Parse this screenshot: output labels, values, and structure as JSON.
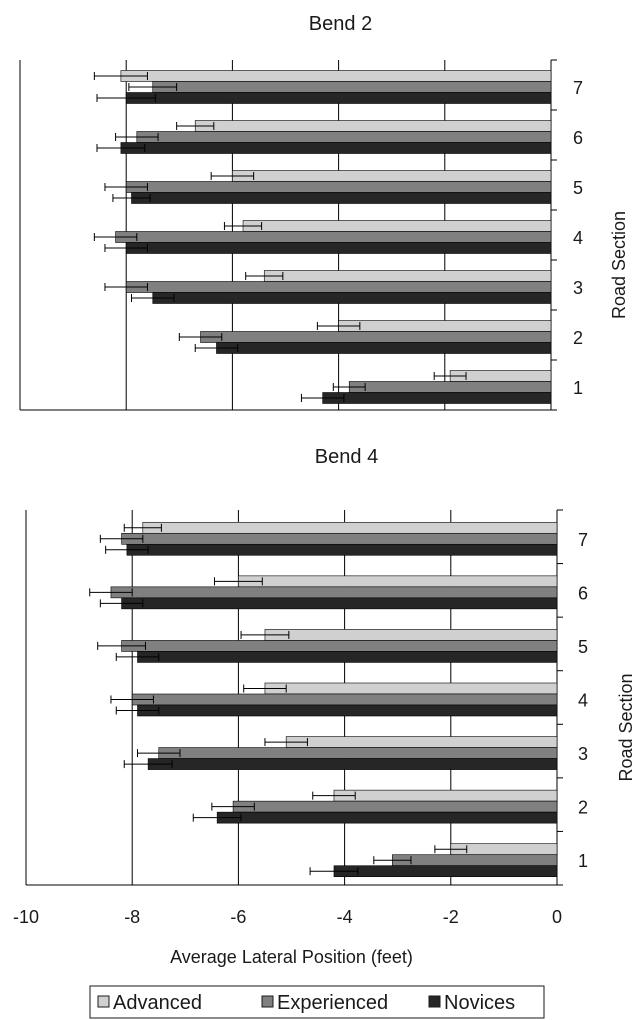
{
  "chart_data": [
    {
      "type": "bar",
      "orientation": "horizontal",
      "title": "Bend 2",
      "xlabel": "",
      "ylabel": "Road Section",
      "xlim": [
        -10,
        0
      ],
      "categories": [
        "7",
        "6",
        "5",
        "4",
        "3",
        "2",
        "1"
      ],
      "series": [
        {
          "name": "Advanced",
          "color": "#d0d0d0",
          "values": [
            -8.1,
            -6.7,
            -6.0,
            -5.8,
            -5.4,
            -4.0,
            -1.9
          ],
          "errors": [
            0.5,
            0.35,
            0.4,
            0.35,
            0.35,
            0.4,
            0.3
          ]
        },
        {
          "name": "Experienced",
          "color": "#808080",
          "values": [
            -7.5,
            -7.8,
            -8.0,
            -8.2,
            -8.0,
            -6.6,
            -3.8
          ],
          "errors": [
            0.45,
            0.4,
            0.4,
            0.4,
            0.4,
            0.4,
            0.3
          ]
        },
        {
          "name": "Novices",
          "color": "#262626",
          "values": [
            -8.0,
            -8.1,
            -7.9,
            -8.0,
            -7.5,
            -6.3,
            -4.3
          ],
          "errors": [
            0.55,
            0.45,
            0.35,
            0.4,
            0.4,
            0.4,
            0.4
          ]
        }
      ],
      "grid": "vertical"
    },
    {
      "type": "bar",
      "orientation": "horizontal",
      "title": "Bend 4",
      "xlabel": "Average Lateral Position (feet)",
      "ylabel": "Road Section",
      "xlim": [
        -10,
        0
      ],
      "xticks": [
        "-10",
        "-8",
        "-6",
        "-4",
        "-2",
        "0"
      ],
      "categories": [
        "7",
        "6",
        "5",
        "4",
        "3",
        "2",
        "1"
      ],
      "series": [
        {
          "name": "Advanced",
          "color": "#d0d0d0",
          "values": [
            -7.8,
            -6.0,
            -5.5,
            -5.5,
            -5.1,
            -4.2,
            -2.0
          ],
          "errors": [
            0.35,
            0.45,
            0.45,
            0.4,
            0.4,
            0.4,
            0.3
          ]
        },
        {
          "name": "Experienced",
          "color": "#808080",
          "values": [
            -8.2,
            -8.4,
            -8.2,
            -8.0,
            -7.5,
            -6.1,
            -3.1
          ],
          "errors": [
            0.4,
            0.4,
            0.45,
            0.4,
            0.4,
            0.4,
            0.35
          ]
        },
        {
          "name": "Novices",
          "color": "#262626",
          "values": [
            -8.1,
            -8.2,
            -7.9,
            -7.9,
            -7.7,
            -6.4,
            -4.2
          ],
          "errors": [
            0.4,
            0.4,
            0.4,
            0.4,
            0.45,
            0.45,
            0.45
          ]
        }
      ],
      "grid": "vertical"
    }
  ],
  "legend": {
    "items": [
      "Advanced",
      "Experienced",
      "Novices"
    ],
    "placement": "bottom"
  }
}
